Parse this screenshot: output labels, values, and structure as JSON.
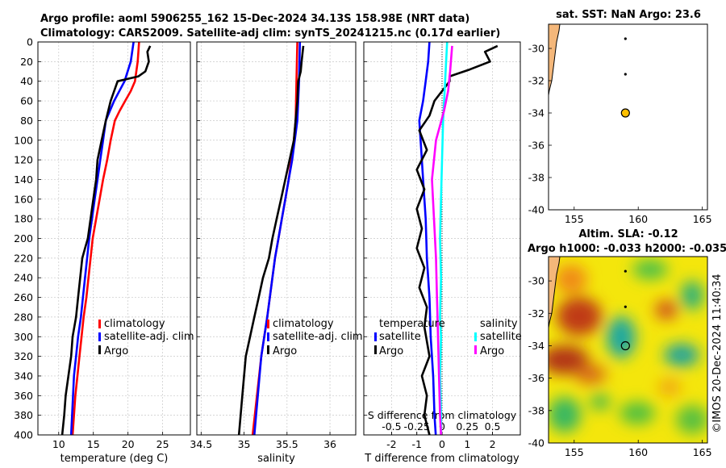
{
  "figure": {
    "title_line1": "Argo profile: aoml 5906255_162 15-Dec-2024 34.13S 158.98E (NRT data)",
    "title_line2": "Climatology: CARS2009. Satellite-adj clim: synTS_20241215.nc (0.17d earlier)",
    "credit": "©IMOS 20-Dec-2024 11:40:34"
  },
  "colors": {
    "climatology": "#ff0000",
    "satellite": "#0000ff",
    "argo": "#000000",
    "salinity_argo": "#ff00ff",
    "salinity_satellite": "#00ffff",
    "land": "#f4b77a",
    "float_marker": "#ffc000"
  },
  "chart_data": [
    {
      "id": "temperature",
      "type": "line",
      "xlabel": "temperature (deg C)",
      "ylabel": "",
      "xlim": [
        7,
        29
      ],
      "ylim": [
        400,
        0
      ],
      "xticks": [
        10,
        15,
        20,
        25
      ],
      "yticks": [
        0,
        20,
        40,
        60,
        80,
        100,
        120,
        140,
        160,
        180,
        200,
        220,
        240,
        260,
        280,
        300,
        320,
        340,
        360,
        380,
        400
      ],
      "grid": true,
      "legend_position": "center-right",
      "series": [
        {
          "name": "climatology",
          "color": "#ff0000",
          "x": [
            21.6,
            21.4,
            21.0,
            20.4,
            19.6,
            18.8,
            18.1,
            17.5,
            17.0,
            16.4,
            15.9,
            15.4,
            14.9,
            14.6,
            14.3,
            14.0,
            13.6,
            13.3,
            13.0,
            12.7,
            12.4,
            12.0
          ],
          "y": [
            0,
            20,
            40,
            50,
            60,
            70,
            80,
            100,
            120,
            140,
            160,
            180,
            200,
            220,
            240,
            260,
            280,
            300,
            320,
            340,
            360,
            400
          ]
        },
        {
          "name": "satellite-adj. clim",
          "color": "#0000ff",
          "x": [
            20.8,
            20.4,
            19.5,
            18.0,
            17.4,
            16.8,
            16.4,
            16.0,
            15.6,
            15.2,
            14.8,
            14.4,
            14.1,
            13.8,
            13.5,
            13.2,
            12.8,
            12.5,
            12.2,
            11.8
          ],
          "y": [
            0,
            20,
            40,
            60,
            70,
            80,
            100,
            120,
            140,
            160,
            180,
            200,
            220,
            240,
            260,
            280,
            300,
            320,
            340,
            400
          ]
        },
        {
          "name": "Argo",
          "color": "#000000",
          "x": [
            23.2,
            22.8,
            23.0,
            22.5,
            21.5,
            18.5,
            17.5,
            16.8,
            16.2,
            15.6,
            15.4,
            15.0,
            14.6,
            14.2,
            13.8,
            13.4,
            12.8,
            12.5,
            12.0,
            11.8,
            11.4,
            11.0,
            10.8,
            10.5
          ],
          "y": [
            4,
            10,
            20,
            30,
            35,
            40,
            60,
            80,
            100,
            120,
            140,
            160,
            180,
            200,
            210,
            220,
            260,
            280,
            300,
            320,
            340,
            360,
            380,
            400
          ]
        }
      ]
    },
    {
      "id": "salinity",
      "type": "line",
      "xlabel": "salinity",
      "ylabel": "",
      "xlim": [
        34.45,
        36.3
      ],
      "ylim": [
        400,
        0
      ],
      "xticks": [
        34.5,
        35,
        35.5,
        36
      ],
      "xtick_labels": [
        "34.5",
        "35",
        "35.5",
        "36"
      ],
      "grid": true,
      "legend_position": "center-right",
      "series": [
        {
          "name": "climatology",
          "color": "#ff0000",
          "x": [
            35.62,
            35.61,
            35.6,
            35.58,
            35.55,
            35.52,
            35.48,
            35.44,
            35.4,
            35.36,
            35.33,
            35.3,
            35.27,
            35.2,
            35.1
          ],
          "y": [
            0,
            40,
            80,
            100,
            120,
            140,
            160,
            180,
            200,
            220,
            240,
            260,
            280,
            320,
            400
          ]
        },
        {
          "name": "satellite-adj. clim",
          "color": "#0000ff",
          "x": [
            35.65,
            35.64,
            35.62,
            35.59,
            35.56,
            35.52,
            35.48,
            35.44,
            35.4,
            35.36,
            35.33,
            35.3,
            35.27,
            35.2,
            35.12
          ],
          "y": [
            0,
            40,
            80,
            100,
            120,
            140,
            160,
            180,
            200,
            220,
            240,
            260,
            280,
            320,
            400
          ]
        },
        {
          "name": "Argo",
          "color": "#000000",
          "x": [
            35.69,
            35.67,
            35.66,
            35.63,
            35.62,
            35.58,
            35.53,
            35.48,
            35.43,
            35.38,
            35.33,
            35.29,
            35.22,
            35.17,
            35.12,
            35.07,
            35.02,
            34.98,
            34.94
          ],
          "y": [
            4,
            20,
            30,
            40,
            60,
            100,
            120,
            140,
            160,
            180,
            200,
            220,
            240,
            260,
            280,
            300,
            320,
            360,
            400
          ]
        }
      ]
    },
    {
      "id": "difference",
      "type": "line",
      "xlabel": "T difference from climatology",
      "xlabel_top": "S difference from climatology",
      "xlim": [
        -3.1,
        3.1
      ],
      "ylim": [
        400,
        0
      ],
      "xticks": [
        -2,
        -1,
        0,
        1,
        2
      ],
      "xtick_labels": [
        "-2",
        "-1",
        "0",
        "1",
        "2"
      ],
      "xticks_s": [
        -0.5,
        -0.25,
        0,
        0.25,
        0.5
      ],
      "xtick_labels_s": [
        "-0.5",
        "-0.25",
        "0",
        "0.25",
        "0.5"
      ],
      "grid": true,
      "legend": {
        "temperature_title": "temperature",
        "salinity_title": "salinity",
        "satellite": "satellite",
        "argo": "Argo"
      },
      "series": [
        {
          "name": "temperature satellite",
          "color": "#0000ff",
          "x": [
            -0.5,
            -0.55,
            -0.65,
            -0.75,
            -0.9,
            -0.85,
            -0.75,
            -0.65,
            -0.6,
            -0.5,
            -0.45,
            -0.35,
            -0.3,
            -0.25
          ],
          "y": [
            0,
            20,
            40,
            60,
            80,
            100,
            140,
            180,
            220,
            260,
            300,
            340,
            380,
            400
          ]
        },
        {
          "name": "temperature Argo",
          "color": "#000000",
          "x": [
            2.2,
            1.7,
            1.9,
            1.1,
            0.3,
            0.3,
            -0.3,
            -0.5,
            -0.9,
            -0.6,
            -1.0,
            -0.7,
            -1.0,
            -0.8,
            -1.0,
            -0.7,
            -0.9,
            -0.6,
            -0.7,
            -0.5,
            -0.8,
            -0.6,
            -0.7,
            -0.5
          ],
          "y": [
            4,
            10,
            20,
            28,
            35,
            40,
            60,
            75,
            90,
            110,
            130,
            150,
            170,
            190,
            210,
            230,
            250,
            270,
            290,
            320,
            340,
            360,
            380,
            400
          ]
        },
        {
          "name": "salinity satellite",
          "color": "#00ffff",
          "x": [
            0.05,
            0.03,
            0.01,
            0.0,
            -0.01,
            -0.02,
            -0.01,
            -0.02,
            -0.01,
            -0.02,
            -0.01,
            -0.01
          ],
          "y": [
            0,
            40,
            80,
            120,
            160,
            200,
            240,
            280,
            300,
            340,
            380,
            400
          ]
        },
        {
          "name": "salinity Argo",
          "color": "#ff00ff",
          "x": [
            0.1,
            0.08,
            0.06,
            0.02,
            -0.06,
            -0.1,
            -0.08,
            -0.06,
            -0.05,
            -0.04,
            -0.03,
            -0.02,
            -0.01
          ],
          "y": [
            4,
            30,
            50,
            70,
            100,
            140,
            180,
            220,
            260,
            300,
            340,
            380,
            400
          ]
        }
      ]
    },
    {
      "id": "sst_map",
      "type": "heatmap",
      "title": "sat. SST: NaN Argo: 23.6",
      "xlim": [
        153,
        165.4
      ],
      "ylim": [
        -40,
        -28.5
      ],
      "xticks": [
        155,
        160,
        165
      ],
      "yticks": [
        -30,
        -32,
        -34,
        -36,
        -38,
        -40
      ],
      "float_position": [
        159,
        -34
      ],
      "float_track": [
        [
          159,
          -29.4
        ],
        [
          159,
          -31.6
        ]
      ]
    },
    {
      "id": "sla_map",
      "type": "heatmap",
      "title_line1": "Altim. SLA: -0.12",
      "title_line2": "Argo h1000: -0.033 h2000: -0.035",
      "xlim": [
        153,
        165.4
      ],
      "ylim": [
        -40,
        -28.5
      ],
      "xticks": [
        155,
        160,
        165
      ],
      "yticks": [
        -30,
        -32,
        -34,
        -36,
        -38,
        -40
      ],
      "float_position": [
        159,
        -34
      ],
      "float_track": [
        [
          159,
          -29.4
        ],
        [
          159,
          -31.6
        ]
      ]
    }
  ]
}
